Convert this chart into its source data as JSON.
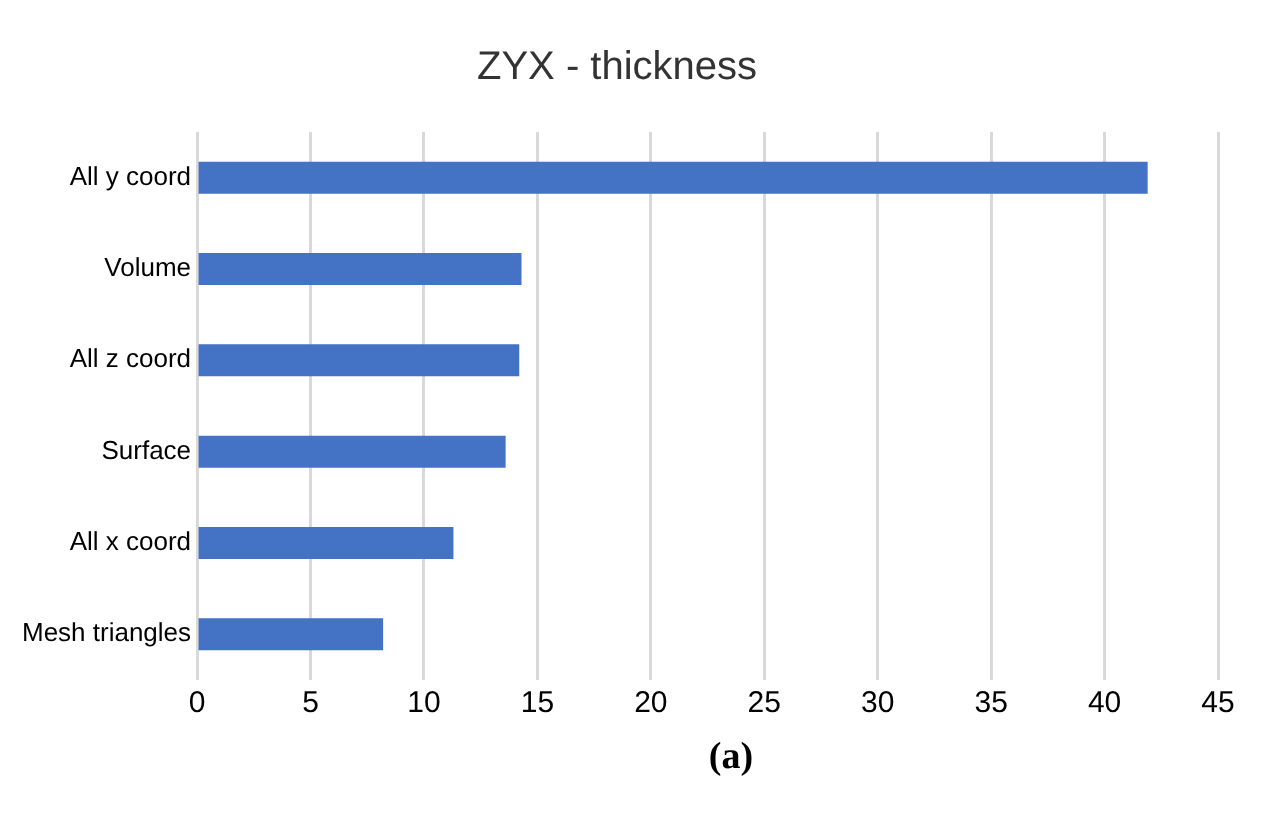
{
  "chart_data": {
    "type": "bar",
    "orientation": "horizontal",
    "title": "ZYX - thickness",
    "categories": [
      "All y coord",
      "Volume",
      "All z coord",
      "Surface",
      "All x coord",
      "Mesh triangles"
    ],
    "values": [
      41.9,
      14.3,
      14.2,
      13.6,
      11.3,
      8.2
    ],
    "color": "#4472c4",
    "xlim": [
      0,
      45
    ],
    "xticks": [
      0,
      5,
      10,
      15,
      20,
      25,
      30,
      35,
      40,
      45
    ],
    "grid": "x",
    "legend": false,
    "annotations": [
      "(a)"
    ]
  }
}
